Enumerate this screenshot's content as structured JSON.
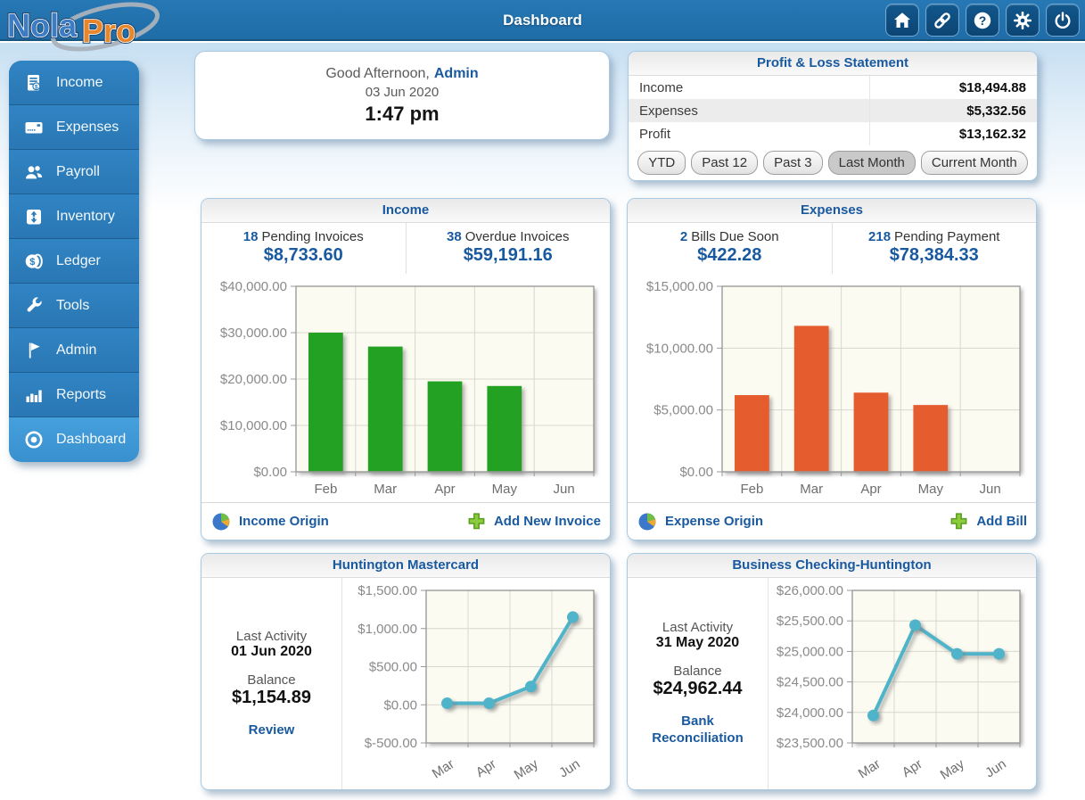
{
  "topbar": {
    "logo_part1": "Nola",
    "logo_part2": "Pro",
    "title": "Dashboard",
    "icons": [
      "home-icon",
      "link-icon",
      "help-icon",
      "gear-icon",
      "power-icon"
    ]
  },
  "sidebar": {
    "items": [
      {
        "label": "Income",
        "icon": "invoice-icon",
        "active": false
      },
      {
        "label": "Expenses",
        "icon": "credit-card-icon",
        "active": false
      },
      {
        "label": "Payroll",
        "icon": "people-icon",
        "active": false
      },
      {
        "label": "Inventory",
        "icon": "inventory-box-icon",
        "active": false
      },
      {
        "label": "Ledger",
        "icon": "coins-icon",
        "active": false
      },
      {
        "label": "Tools",
        "icon": "wrench-icon",
        "active": false
      },
      {
        "label": "Admin",
        "icon": "flag-icon",
        "active": false
      },
      {
        "label": "Reports",
        "icon": "bar-chart-icon",
        "active": false
      },
      {
        "label": "Dashboard",
        "icon": "target-icon",
        "active": true
      }
    ]
  },
  "greeting": {
    "salutation": "Good Afternoon,",
    "user": "Admin",
    "date": "03 Jun 2020",
    "time": "1:47 pm"
  },
  "profit_loss": {
    "title": "Profit & Loss Statement",
    "rows": [
      {
        "label": "Income",
        "value": "$18,494.88"
      },
      {
        "label": "Expenses",
        "value": "$5,332.56"
      },
      {
        "label": "Profit",
        "value": "$13,162.32"
      }
    ],
    "buttons": [
      {
        "label": "YTD",
        "active": false
      },
      {
        "label": "Past 12",
        "active": false
      },
      {
        "label": "Past 3",
        "active": false
      },
      {
        "label": "Last Month",
        "active": true
      },
      {
        "label": "Current Month",
        "active": false
      }
    ]
  },
  "income_panel": {
    "title": "Income",
    "stats": [
      {
        "count": "18",
        "label": "Pending Invoices",
        "amount": "$8,733.60"
      },
      {
        "count": "38",
        "label": "Overdue Invoices",
        "amount": "$59,191.16"
      }
    ],
    "footer_origin": "Income Origin",
    "footer_add": "Add New Invoice"
  },
  "expenses_panel": {
    "title": "Expenses",
    "stats": [
      {
        "count": "2",
        "label": "Bills Due Soon",
        "amount": "$422.28"
      },
      {
        "count": "218",
        "label": "Pending Payment",
        "amount": "$78,384.33"
      }
    ],
    "footer_origin": "Expense Origin",
    "footer_add": "Add Bill"
  },
  "mastercard_panel": {
    "title": "Huntington Mastercard",
    "last_activity_label": "Last Activity",
    "last_activity": "01 Jun 2020",
    "balance_label": "Balance",
    "balance": "$1,154.89",
    "link": "Review"
  },
  "checking_panel": {
    "title": "Business Checking-Huntington",
    "last_activity_label": "Last Activity",
    "last_activity": "31 May 2020",
    "balance_label": "Balance",
    "balance": "$24,962.44",
    "link": "Bank Reconciliation"
  },
  "colors": {
    "topbar_blue": "#2173AE",
    "sidebar_blue": "#2C7DBA",
    "sidebar_active_blue": "#3E96D6",
    "accent_blue": "#19599F",
    "income_bar_green": "#21A121",
    "expense_bar_orange": "#E55B2D",
    "account_line_teal": "#4FB3C9"
  },
  "chart_data": [
    {
      "id": "income_chart",
      "type": "bar",
      "title": "Income",
      "categories": [
        "Feb",
        "Mar",
        "Apr",
        "May",
        "Jun"
      ],
      "values": [
        30000,
        27000,
        19500,
        18500,
        0
      ],
      "ylim": [
        0,
        40000
      ],
      "yticks": [
        {
          "value": 0,
          "label": "$0.00"
        },
        {
          "value": 10000,
          "label": "$10,000.00"
        },
        {
          "value": 20000,
          "label": "$20,000.00"
        },
        {
          "value": 30000,
          "label": "$30,000.00"
        },
        {
          "value": 40000,
          "label": "$40,000.00"
        }
      ],
      "xlabel": "",
      "ylabel": "",
      "grid": true,
      "legend": "none",
      "color": "#21A121",
      "plot_bg": "#FBFBF1",
      "rotate_x_labels": false
    },
    {
      "id": "expenses_chart",
      "type": "bar",
      "title": "Expenses",
      "categories": [
        "Feb",
        "Mar",
        "Apr",
        "May",
        "Jun"
      ],
      "values": [
        6200,
        11800,
        6400,
        5400,
        0
      ],
      "ylim": [
        0,
        15000
      ],
      "yticks": [
        {
          "value": 0,
          "label": "$0.00"
        },
        {
          "value": 5000,
          "label": "$5,000.00"
        },
        {
          "value": 10000,
          "label": "$10,000.00"
        },
        {
          "value": 15000,
          "label": "$15,000.00"
        }
      ],
      "xlabel": "",
      "ylabel": "",
      "grid": true,
      "legend": "none",
      "color": "#E55B2D",
      "plot_bg": "#FBFBF1",
      "rotate_x_labels": false
    },
    {
      "id": "mastercard_chart",
      "type": "line",
      "title": "Huntington Mastercard",
      "categories": [
        "Mar",
        "Apr",
        "May",
        "Jun"
      ],
      "values": [
        20,
        20,
        240,
        1150
      ],
      "ylim": [
        -500,
        1500
      ],
      "yticks": [
        {
          "value": -500,
          "label": "$-500.00"
        },
        {
          "value": 0,
          "label": "$0.00"
        },
        {
          "value": 500,
          "label": "$500.00"
        },
        {
          "value": 1000,
          "label": "$1,000.00"
        },
        {
          "value": 1500,
          "label": "$1,500.00"
        }
      ],
      "xlabel": "",
      "ylabel": "",
      "grid": true,
      "legend": "none",
      "color": "#4FB3C9",
      "plot_bg": "#FBFBF1",
      "rotate_x_labels": true
    },
    {
      "id": "checking_chart",
      "type": "line",
      "title": "Business Checking-Huntington",
      "categories": [
        "Mar",
        "Apr",
        "May",
        "Jun"
      ],
      "values": [
        23950,
        25430,
        24960,
        24960
      ],
      "ylim": [
        23500,
        26000
      ],
      "yticks": [
        {
          "value": 23500,
          "label": "$23,500.00"
        },
        {
          "value": 24000,
          "label": "$24,000.00"
        },
        {
          "value": 24500,
          "label": "$24,500.00"
        },
        {
          "value": 25000,
          "label": "$25,000.00"
        },
        {
          "value": 25500,
          "label": "$25,500.00"
        },
        {
          "value": 26000,
          "label": "$26,000.00"
        }
      ],
      "xlabel": "",
      "ylabel": "",
      "grid": true,
      "legend": "none",
      "color": "#4FB3C9",
      "plot_bg": "#FBFBF1",
      "rotate_x_labels": true
    }
  ]
}
